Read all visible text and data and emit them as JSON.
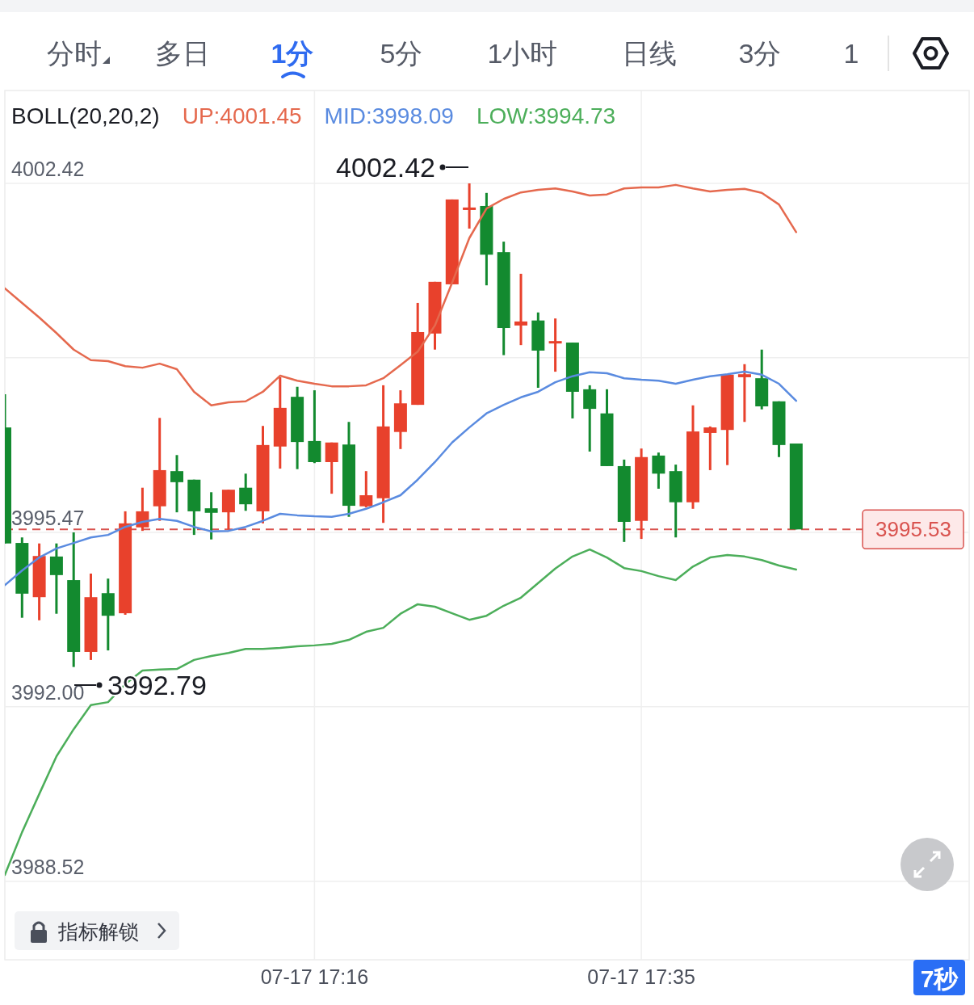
{
  "chart_data": {
    "type": "candlestick",
    "legend_title": "BOLL(20,20,2)",
    "categories": [
      null,
      null,
      null,
      null,
      null,
      null,
      null,
      null,
      null,
      null,
      null,
      null,
      null,
      null,
      null,
      null,
      null,
      null,
      "07-17 17:16",
      null,
      null,
      null,
      null,
      null,
      null,
      null,
      null,
      null,
      null,
      null,
      null,
      null,
      null,
      null,
      null,
      null,
      null,
      "07-17 17:35",
      null,
      null,
      null,
      null,
      null,
      null,
      null,
      null,
      null
    ],
    "ohlc": [
      [
        3997.56,
        3998.22,
        3995.25,
        3995.25
      ],
      [
        3995.26,
        3995.37,
        3993.77,
        3994.25
      ],
      [
        3994.18,
        3995.25,
        3993.72,
        3995.0
      ],
      [
        3994.99,
        3995.25,
        3993.85,
        3994.62
      ],
      [
        3994.52,
        3995.47,
        3992.79,
        3993.09
      ],
      [
        3993.09,
        3994.65,
        3992.93,
        3994.18
      ],
      [
        3994.26,
        3994.55,
        3993.12,
        3993.81
      ],
      [
        3993.86,
        3995.89,
        3993.83,
        3995.65
      ],
      [
        3995.57,
        3996.36,
        3995.5,
        3995.89
      ],
      [
        3995.99,
        3997.75,
        3995.7,
        3996.71
      ],
      [
        3996.69,
        3997.01,
        3995.87,
        3996.47
      ],
      [
        3996.52,
        3996.52,
        3995.42,
        3995.89
      ],
      [
        3995.95,
        3996.27,
        3995.33,
        3995.86
      ],
      [
        3995.87,
        3996.32,
        3995.53,
        3996.32
      ],
      [
        3996.36,
        3996.64,
        3995.9,
        3996.03
      ],
      [
        3995.89,
        3997.59,
        3995.65,
        3997.21
      ],
      [
        3997.18,
        3998.56,
        3996.74,
        3997.95
      ],
      [
        3998.17,
        3998.37,
        3996.73,
        3997.27
      ],
      [
        3997.29,
        3998.3,
        3996.85,
        3996.87
      ],
      [
        3996.87,
        3997.26,
        3996.24,
        3997.26
      ],
      [
        3997.22,
        3997.67,
        3995.78,
        3996.0
      ],
      [
        3995.99,
        3996.69,
        3995.97,
        3996.21
      ],
      [
        3996.15,
        3998.4,
        3995.66,
        3997.58
      ],
      [
        3997.47,
        3998.3,
        3997.13,
        3998.04
      ],
      [
        3998.01,
        4000.04,
        3998.01,
        3999.46
      ],
      [
        3999.43,
        4000.46,
        3999.11,
        4000.46
      ],
      [
        4000.41,
        4002.1,
        4000.41,
        4002.1
      ],
      [
        4001.89,
        4002.42,
        4001.52,
        4001.94
      ],
      [
        4001.97,
        4002.23,
        4000.39,
        4001.0
      ],
      [
        4001.05,
        4001.26,
        3999.0,
        3999.54
      ],
      [
        3999.59,
        4000.62,
        3999.2,
        3999.67
      ],
      [
        3999.69,
        3999.85,
        3998.35,
        3999.09
      ],
      [
        3999.25,
        3999.73,
        3998.67,
        3999.28
      ],
      [
        3999.25,
        3999.25,
        3997.74,
        3998.27
      ],
      [
        3998.32,
        3998.4,
        3997.08,
        3997.93
      ],
      [
        3997.84,
        3998.32,
        3996.79,
        3996.79
      ],
      [
        3996.79,
        3996.92,
        3995.28,
        3995.68
      ],
      [
        3995.7,
        3997.14,
        3995.34,
        3996.97
      ],
      [
        3997.0,
        3997.06,
        3996.34,
        3996.64
      ],
      [
        3996.69,
        3996.82,
        3995.37,
        3996.07
      ],
      [
        3996.07,
        3998.0,
        3995.94,
        3997.48
      ],
      [
        3997.45,
        3997.58,
        3996.71,
        3997.56
      ],
      [
        3997.51,
        3998.61,
        3996.81,
        3998.61
      ],
      [
        3998.56,
        3998.82,
        3997.67,
        3998.62
      ],
      [
        3998.54,
        3999.11,
        3997.92,
        3997.98
      ],
      [
        3998.08,
        3998.08,
        3996.97,
        3997.21
      ],
      [
        3997.24,
        3997.24,
        3995.53,
        3995.53
      ]
    ],
    "colors": [
      "#138a2f",
      "#138a2f",
      "#e8412c",
      "#138a2f",
      "#138a2f",
      "#e8412c",
      "#138a2f",
      "#e8412c",
      "#e8412c",
      "#e8412c",
      "#138a2f",
      "#138a2f",
      "#138a2f",
      "#e8412c",
      "#138a2f",
      "#e8412c",
      "#e8412c",
      "#138a2f",
      "#138a2f",
      "#e8412c",
      "#138a2f",
      "#e8412c",
      "#e8412c",
      "#e8412c",
      "#e8412c",
      "#e8412c",
      "#e8412c",
      "#e8412c",
      "#138a2f",
      "#138a2f",
      "#e8412c",
      "#138a2f",
      "#e8412c",
      "#138a2f",
      "#138a2f",
      "#138a2f",
      "#138a2f",
      "#e8412c",
      "#138a2f",
      "#138a2f",
      "#e8412c",
      "#e8412c",
      "#e8412c",
      "#e8412c",
      "#138a2f",
      "#138a2f",
      "#138a2f"
    ],
    "series": [
      {
        "type": "line",
        "name": "UP:4001.45",
        "color": "#e5694e",
        "values": [
          4000.33,
          4000.04,
          3999.75,
          3999.44,
          3999.11,
          3998.9,
          3998.88,
          3998.78,
          3998.75,
          3998.83,
          3998.72,
          3998.27,
          3998.0,
          3998.06,
          3998.08,
          3998.27,
          3998.59,
          3998.49,
          3998.43,
          3998.38,
          3998.38,
          3998.4,
          3998.54,
          3998.8,
          3999.07,
          3999.59,
          4000.44,
          4001.33,
          4001.92,
          4002.11,
          4002.24,
          4002.29,
          4002.32,
          4002.26,
          4002.18,
          4002.2,
          4002.32,
          4002.34,
          4002.34,
          4002.39,
          4002.32,
          4002.26,
          4002.29,
          4002.31,
          4002.23,
          4002.0,
          4001.45
        ]
      },
      {
        "type": "line",
        "name": "MID:3998.09",
        "color": "#5a8be0",
        "values": [
          3994.42,
          3994.71,
          3994.97,
          3995.15,
          3995.26,
          3995.37,
          3995.42,
          3995.58,
          3995.68,
          3995.74,
          3995.7,
          3995.58,
          3995.49,
          3995.5,
          3995.58,
          3995.7,
          3995.84,
          3995.81,
          3995.79,
          3995.78,
          3995.84,
          3995.94,
          3996.07,
          3996.21,
          3996.52,
          3996.87,
          3997.26,
          3997.56,
          3997.84,
          3998.01,
          3998.16,
          3998.27,
          3998.46,
          3998.58,
          3998.66,
          3998.64,
          3998.54,
          3998.51,
          3998.49,
          3998.43,
          3998.51,
          3998.58,
          3998.62,
          3998.67,
          3998.61,
          3998.43,
          3998.09
        ]
      },
      {
        "type": "line",
        "name": "LOW:3994.73",
        "color": "#4cae5a",
        "values": [
          3988.65,
          3989.5,
          3990.26,
          3991.01,
          3991.55,
          3992.03,
          3992.09,
          3992.45,
          3992.72,
          3992.74,
          3992.75,
          3992.93,
          3993.01,
          3993.07,
          3993.15,
          3993.15,
          3993.17,
          3993.2,
          3993.22,
          3993.25,
          3993.33,
          3993.49,
          3993.57,
          3993.85,
          3994.04,
          3993.99,
          3993.86,
          3993.73,
          3993.81,
          3994.01,
          3994.17,
          3994.46,
          3994.75,
          3994.99,
          3995.13,
          3994.97,
          3994.76,
          3994.7,
          3994.6,
          3994.52,
          3994.79,
          3994.97,
          3995.02,
          3994.99,
          3994.92,
          3994.81,
          3994.73
        ]
      }
    ],
    "ylim": [
      3986.96,
      4004.27
    ],
    "yticks": [
      4002.42,
      {
        "value": 3998.95,
        "label": null
      },
      3995.47,
      {
        "value": 3992,
        "label": "3992.00"
      },
      3988.52
    ],
    "grid": true,
    "legend": "top",
    "ref_lines": [
      {
        "axis": "y",
        "value": 3995.53,
        "label": "3995.53",
        "color": "#d9534f",
        "line_style": "dashed"
      }
    ],
    "annotations": [
      "分时",
      "多日",
      "1分",
      "5分",
      "1小时",
      "日线",
      "3分",
      "1",
      "指标解锁",
      "7秒",
      "4002.42",
      "3992.79"
    ]
  }
}
